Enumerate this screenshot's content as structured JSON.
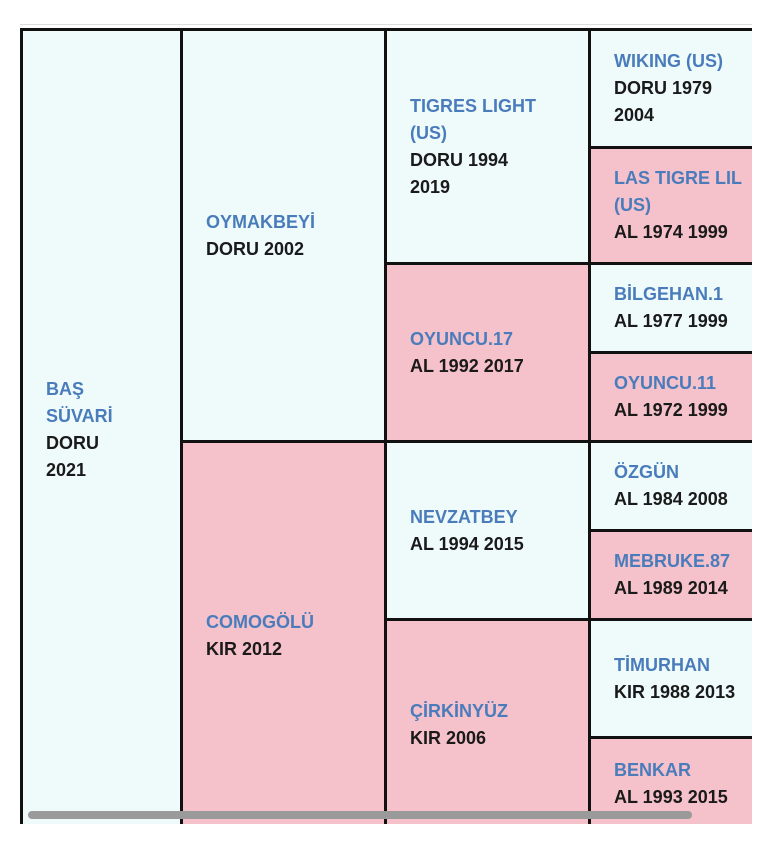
{
  "pedigree": {
    "cells": [
      {
        "name": "BAŞ SÜVARİ",
        "detail": "DORU 2021"
      },
      {
        "name": "OYMAKBEYİ",
        "detail": "DORU 2002"
      },
      {
        "name": "COMOGÖLÜ",
        "detail": "KIR 2012"
      },
      {
        "name": "TIGRES LIGHT (US)",
        "detail": "DORU 1994 2019"
      },
      {
        "name": "OYUNCU.17",
        "detail": "AL 1992 2017"
      },
      {
        "name": "NEVZATBEY",
        "detail": "AL 1994 2015"
      },
      {
        "name": "ÇİRKİNYÜZ",
        "detail": "KIR 2006"
      },
      {
        "name": "WIKING (US)",
        "detail": "DORU 1979 2004"
      },
      {
        "name": "LAS TIGRE LIL (US)",
        "detail": "AL 1974 1999"
      },
      {
        "name": "BİLGEHAN.1",
        "detail": "AL 1977 1999"
      },
      {
        "name": "OYUNCU.11",
        "detail": "AL 1972 1999"
      },
      {
        "name": "ÖZGÜN",
        "detail": "AL 1984 2008"
      },
      {
        "name": "MEBRUKE.87",
        "detail": "AL 1989 2014"
      },
      {
        "name": "TİMURHAN",
        "detail": "KIR 1988 2013"
      },
      {
        "name": "BENKAR",
        "detail": "AL 1993 2015"
      }
    ]
  }
}
